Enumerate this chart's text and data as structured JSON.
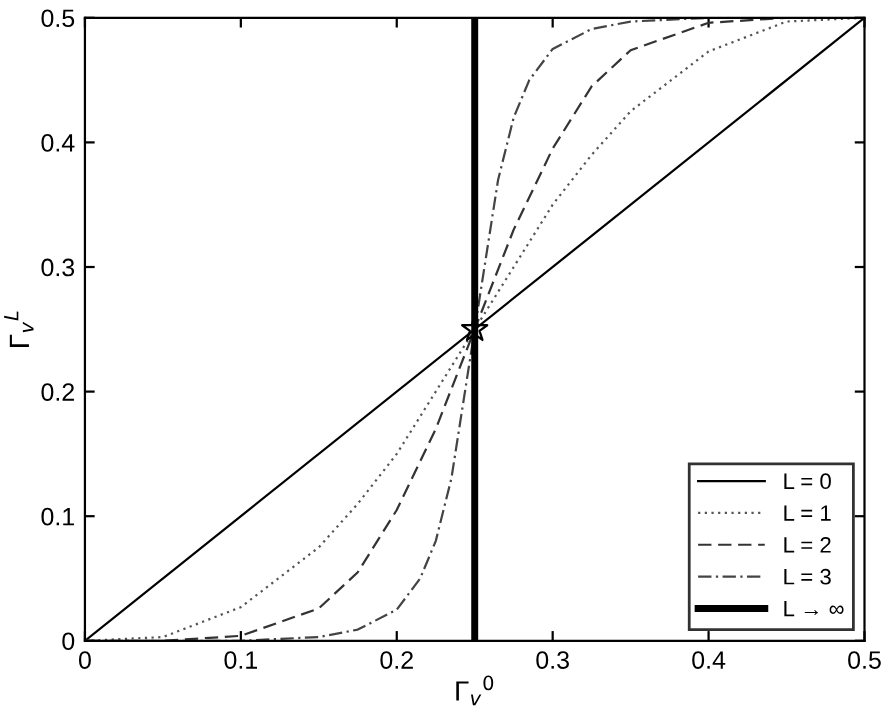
{
  "chart_data": {
    "type": "line",
    "xlabel": "Γ$_{v}$$^{0}$",
    "ylabel": "Γ$_{v}$$^{L}$",
    "xlim": [
      0,
      0.5
    ],
    "ylim": [
      0,
      0.5
    ],
    "xticks": [
      0,
      0.1,
      0.2,
      0.3,
      0.4,
      0.5
    ],
    "yticks": [
      0,
      0.1,
      0.2,
      0.3,
      0.4,
      0.5
    ],
    "legend": "bottom right",
    "grid": false,
    "series": [
      {
        "name": "L = 0",
        "color": "#000000",
        "line_style": "solid",
        "x": [
          0,
          0.5
        ],
        "values": [
          0,
          0.5
        ]
      },
      {
        "name": "L = 1",
        "color": "#555555",
        "line_style": "dotted",
        "x": [
          0,
          0.05,
          0.1,
          0.15,
          0.175,
          0.2,
          0.225,
          0.25,
          0.275,
          0.3,
          0.325,
          0.35,
          0.4,
          0.45,
          0.5
        ],
        "values": [
          0,
          0.003,
          0.027,
          0.075,
          0.11,
          0.15,
          0.2,
          0.25,
          0.3,
          0.35,
          0.39,
          0.425,
          0.473,
          0.497,
          0.5
        ]
      },
      {
        "name": "L = 2",
        "color": "#333333",
        "line_style": "dashed",
        "x": [
          0,
          0.05,
          0.1,
          0.15,
          0.175,
          0.2,
          0.225,
          0.25,
          0.275,
          0.3,
          0.325,
          0.35,
          0.4,
          0.45,
          0.5
        ],
        "values": [
          0,
          0,
          0.004,
          0.026,
          0.055,
          0.105,
          0.17,
          0.25,
          0.33,
          0.395,
          0.445,
          0.474,
          0.496,
          0.5,
          0.5
        ]
      },
      {
        "name": "L = 3",
        "color": "#444444",
        "line_style": "dashdot",
        "x": [
          0,
          0.05,
          0.1,
          0.15,
          0.175,
          0.2,
          0.215,
          0.225,
          0.235,
          0.25,
          0.265,
          0.275,
          0.285,
          0.3,
          0.325,
          0.35,
          0.4,
          0.45,
          0.5
        ],
        "values": [
          0,
          0,
          0,
          0.003,
          0.009,
          0.025,
          0.05,
          0.08,
          0.13,
          0.25,
          0.37,
          0.42,
          0.45,
          0.475,
          0.491,
          0.497,
          0.5,
          0.5,
          0.5
        ]
      },
      {
        "name": "L → ∞",
        "color": "#000000",
        "line_style": "solid",
        "x": [
          0.25,
          0.25
        ],
        "values": [
          0,
          0.5
        ]
      },
      {
        "type": "scatter",
        "color": "#000000",
        "marker": "star",
        "x": [
          0.25
        ],
        "values": [
          0.25
        ]
      }
    ]
  }
}
